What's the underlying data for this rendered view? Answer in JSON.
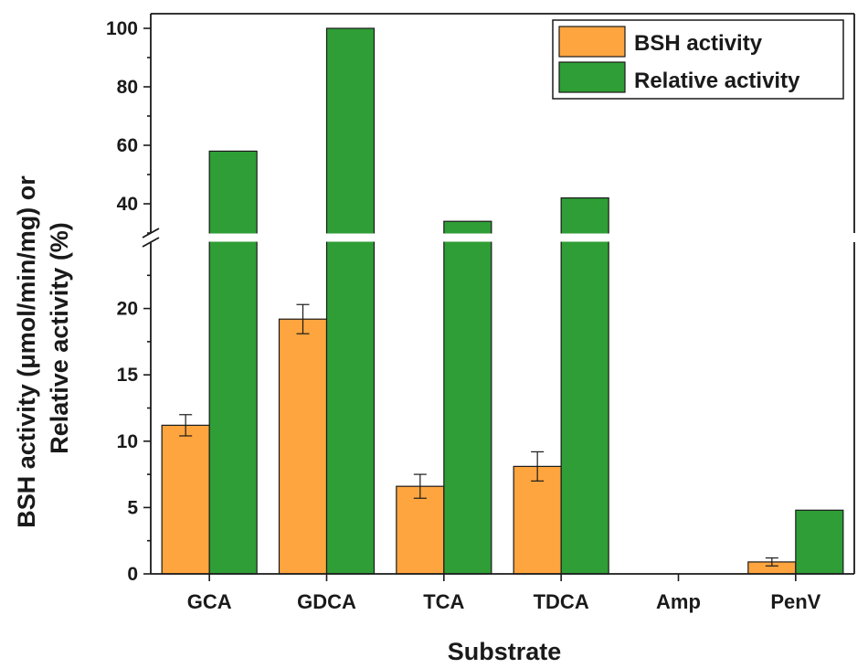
{
  "chart_data": {
    "type": "bar",
    "categories": [
      "GCA",
      "GDCA",
      "TCA",
      "TDCA",
      "Amp",
      "PenV"
    ],
    "series": [
      {
        "name": "BSH activity",
        "color": "#ffa53f",
        "values": [
          11.2,
          19.2,
          6.6,
          8.1,
          0,
          0.9
        ],
        "errors": [
          0.8,
          1.1,
          0.9,
          1.1,
          0,
          0.3
        ]
      },
      {
        "name": "Relative activity",
        "color": "#2f9e36",
        "values": [
          58,
          100,
          34,
          42,
          0,
          4.8
        ],
        "errors": null
      }
    ],
    "xlabel": "Substrate",
    "ylabel_line1": "BSH activity (μmol/min/mg) or",
    "ylabel_line2": "Relative activity (%)",
    "lower_axis": {
      "range": [
        0,
        25
      ],
      "ticks": [
        0,
        5,
        10,
        15,
        20
      ],
      "tick_labels": [
        "0",
        "5",
        "10",
        "15",
        "20"
      ]
    },
    "upper_axis": {
      "range": [
        30,
        105
      ],
      "ticks": [
        40,
        60,
        80,
        100
      ],
      "tick_labels": [
        "40",
        "60",
        "80",
        "100"
      ]
    },
    "axis_break": true,
    "legend_position": "top-right"
  }
}
